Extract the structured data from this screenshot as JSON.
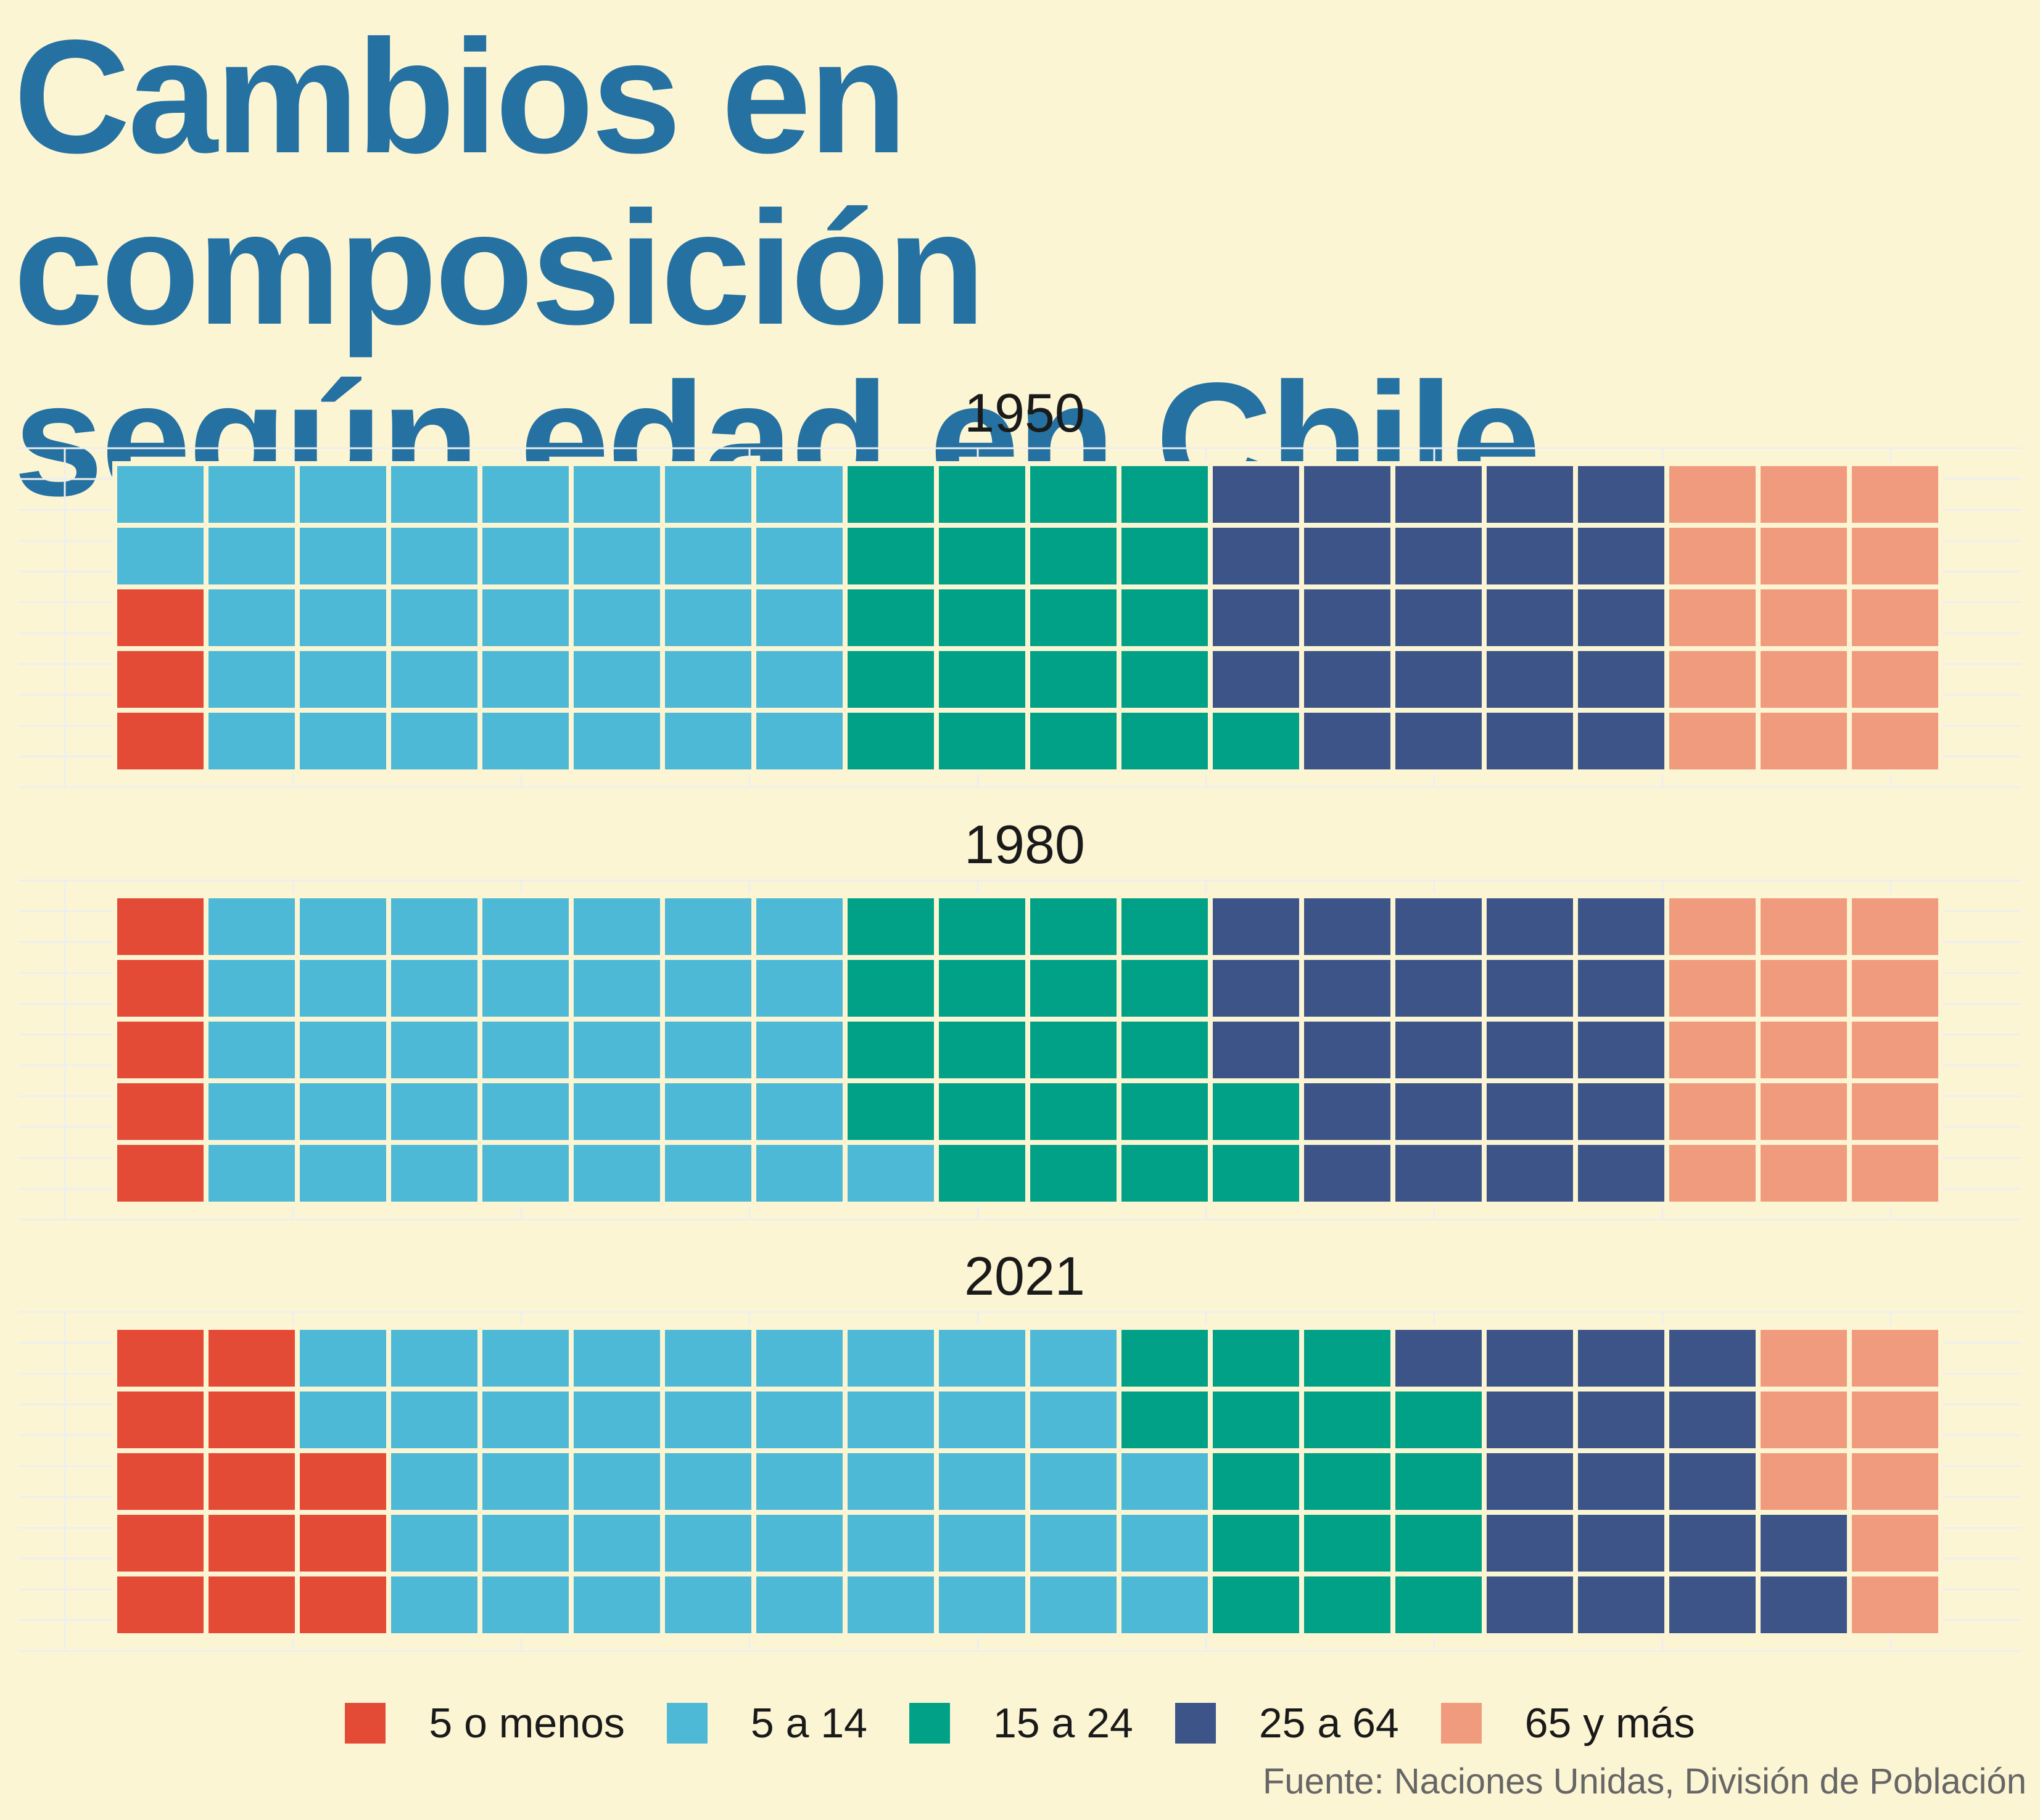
{
  "chart_data": {
    "type": "waffle",
    "title": [
      "Cambios en composición",
      "según edad en Chile"
    ],
    "caption": "Fuente: Naciones Unidas, División de Población",
    "grid": true,
    "legend_position": "bottom",
    "rows": 5,
    "categories": [
      "5 o menos",
      "5 a 14",
      "15 a 24",
      "25 a 64",
      "65 y más"
    ],
    "colors": [
      "#E34B37",
      "#4DB9D6",
      "#00A186",
      "#3C5488",
      "#F19B7E"
    ],
    "panels": [
      {
        "year": "1950",
        "counts": [
          3,
          37,
          21,
          24,
          15
        ]
      },
      {
        "year": "1980",
        "counts": [
          5,
          36,
          21,
          23,
          15
        ]
      },
      {
        "year": "2021",
        "counts": [
          13,
          45,
          16,
          18,
          8
        ]
      }
    ]
  },
  "colors": {
    "background": "#FCF5D4",
    "title": "#2571A2",
    "grid": "#EEEEEE",
    "caption": "#666666"
  }
}
